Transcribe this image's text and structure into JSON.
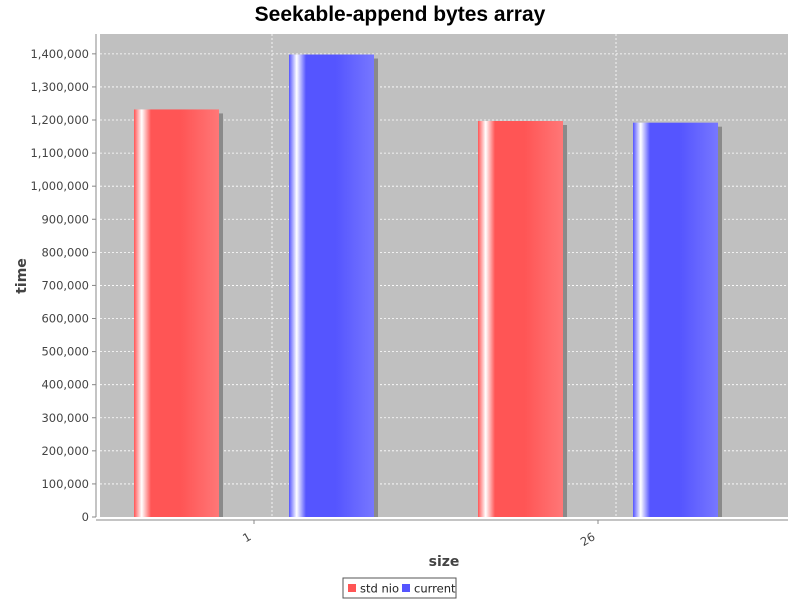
{
  "chart_data": {
    "type": "bar",
    "title": "Seekable-append bytes array",
    "xlabel": "size",
    "ylabel": "time",
    "categories": [
      "1",
      "26"
    ],
    "series": [
      {
        "name": "std nio",
        "values": [
          1232000,
          1197000
        ],
        "color": "#ff5555"
      },
      {
        "name": "current",
        "values": [
          1398000,
          1192000
        ],
        "color": "#5555ff"
      }
    ],
    "ylim": [
      0,
      1460000
    ],
    "yticks": [
      0,
      100000,
      200000,
      300000,
      400000,
      500000,
      600000,
      700000,
      800000,
      900000,
      1000000,
      1100000,
      1200000,
      1300000,
      1400000
    ],
    "grid": true,
    "legend": "bottom",
    "plot_background": "#c0c0c0"
  }
}
